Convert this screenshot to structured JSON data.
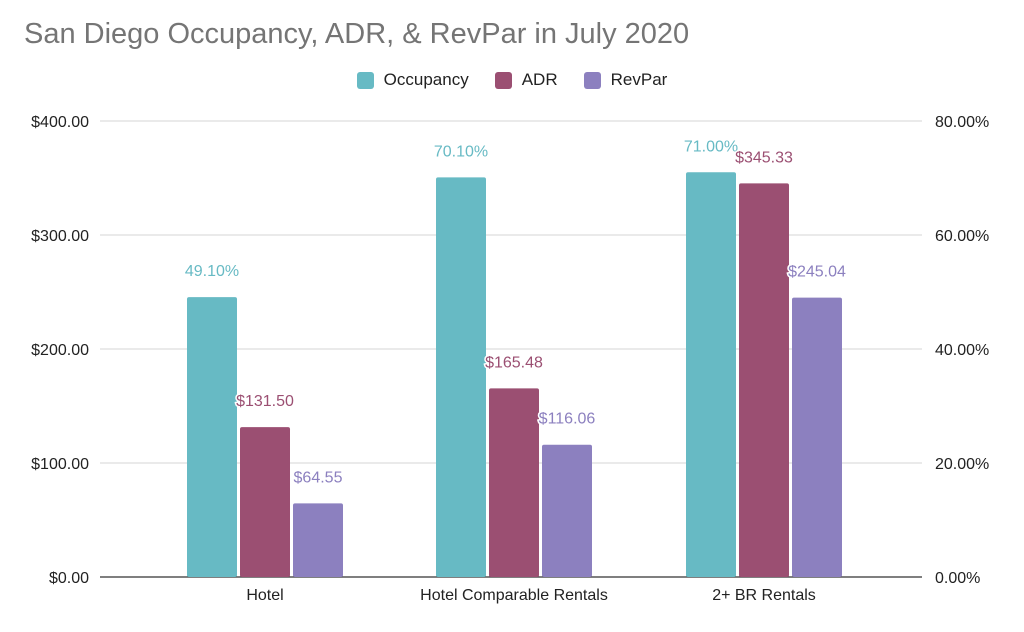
{
  "chart_data": {
    "type": "bar",
    "title": "San Diego Occupancy, ADR, & RevPar in July 2020",
    "categories": [
      "Hotel",
      "Hotel Comparable Rentals",
      "2+ BR Rentals"
    ],
    "series": [
      {
        "name": "Occupancy",
        "axis": "right",
        "color": "#67bac4",
        "values": [
          49.1,
          70.1,
          71.0
        ],
        "labels": [
          "49.10%",
          "70.10%",
          "71.00%"
        ]
      },
      {
        "name": "ADR",
        "axis": "left",
        "color": "#9b4f72",
        "values": [
          131.5,
          165.48,
          345.33
        ],
        "labels": [
          "$131.50",
          "$165.48",
          "$345.33"
        ]
      },
      {
        "name": "RevPar",
        "axis": "left",
        "color": "#8c80bf",
        "values": [
          64.55,
          116.06,
          245.04
        ],
        "labels": [
          "$64.55",
          "$116.06",
          "$245.04"
        ]
      }
    ],
    "left_axis": {
      "ylim": [
        0,
        400
      ],
      "ticks": [
        "$0.00",
        "$100.00",
        "$200.00",
        "$300.00",
        "$400.00"
      ]
    },
    "right_axis": {
      "ylim": [
        0,
        80
      ],
      "ticks": [
        "0.00%",
        "20.00%",
        "40.00%",
        "60.00%",
        "80.00%"
      ]
    },
    "legend_position": "top-center",
    "grid": true
  }
}
